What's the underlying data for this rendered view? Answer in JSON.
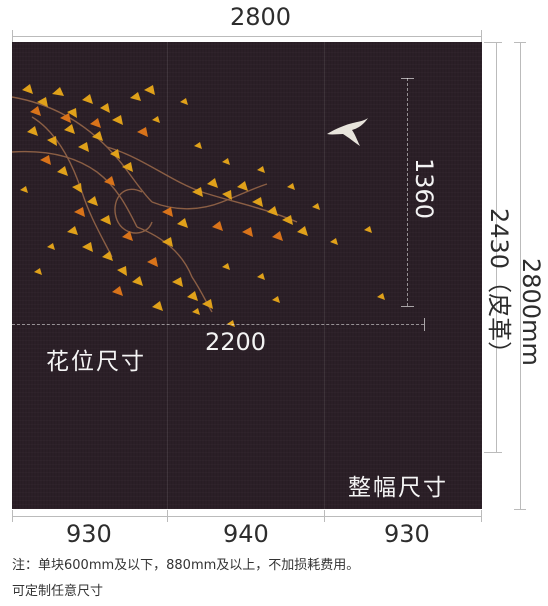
{
  "dimensions": {
    "total_width": "2800",
    "total_height": "2800mm",
    "leather_height": "2430（皮革）",
    "flower_width": "2200",
    "flower_height": "1360",
    "segments": [
      "930",
      "940",
      "930"
    ]
  },
  "labels": {
    "flower_size": "花位尺寸",
    "full_size": "整幅尺寸"
  },
  "notes": {
    "line1": "注：单块600mm及以下，880mm及以上，不加损耗费用。",
    "line2": "可定制任意尺寸"
  },
  "colors": {
    "panel": "#2b1f27",
    "leaf_gold": "#e0a11a",
    "leaf_orange": "#d9731a",
    "branch": "#9c6a4a"
  }
}
